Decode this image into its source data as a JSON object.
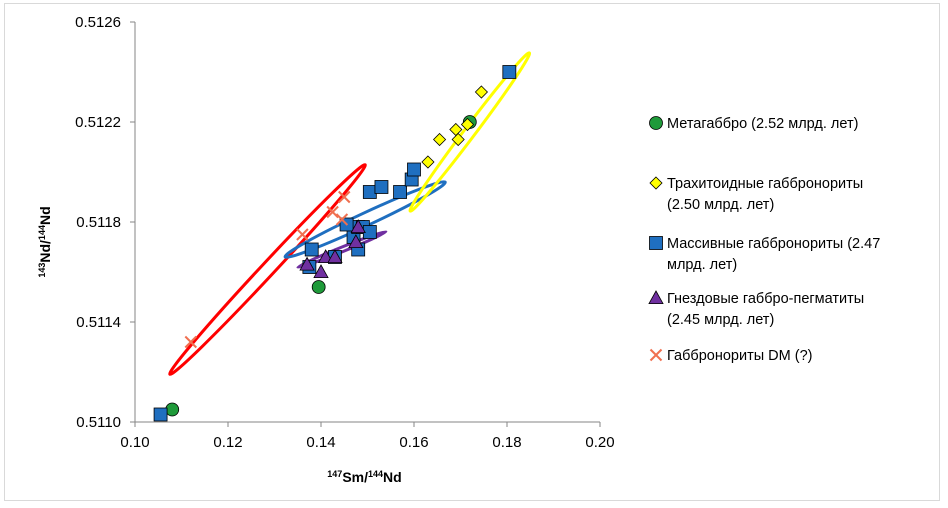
{
  "chart_data": {
    "type": "scatter",
    "title": "",
    "xlabel": {
      "sup1": "147",
      "main1": "Sm/",
      "sup2": "144",
      "main2": "Nd"
    },
    "ylabel": {
      "sup1": "143",
      "main1": "Nd/",
      "sup2": "144",
      "main2": "Nd"
    },
    "xlim": [
      0.1,
      0.2
    ],
    "ylim": [
      0.511,
      0.5126
    ],
    "x_ticks": [
      "0.10",
      "0.12",
      "0.14",
      "0.16",
      "0.18",
      "0.20"
    ],
    "y_ticks": [
      "0.5110",
      "0.5114",
      "0.5118",
      "0.5122",
      "0.5126"
    ],
    "grid": false,
    "legend_position": "right",
    "series": [
      {
        "name_lines": [
          "Метагаббро (2.52 млрд. лет)"
        ],
        "marker": "circle",
        "color": "#1f9a3a",
        "points": [
          [
            0.108,
            0.51105
          ],
          [
            0.1395,
            0.51154
          ],
          [
            0.172,
            0.5122
          ]
        ]
      },
      {
        "name_lines": [
          "Трахитоидные габбронориты",
          "(2.50 млрд. лет)"
        ],
        "marker": "diamond",
        "color": "#ffff00",
        "points": [
          [
            0.163,
            0.51204
          ],
          [
            0.1655,
            0.51213
          ],
          [
            0.169,
            0.51217
          ],
          [
            0.1695,
            0.51213
          ],
          [
            0.1715,
            0.51219
          ],
          [
            0.1745,
            0.51232
          ]
        ]
      },
      {
        "name_lines": [
          "Массивные габбронориты (2.47",
          "млрд. лет)"
        ],
        "marker": "square",
        "color": "#1f6fc0",
        "points": [
          [
            0.1055,
            0.51103
          ],
          [
            0.138,
            0.51169
          ],
          [
            0.1375,
            0.51162
          ],
          [
            0.143,
            0.51166
          ],
          [
            0.147,
            0.51174
          ],
          [
            0.148,
            0.51178
          ],
          [
            0.148,
            0.51169
          ],
          [
            0.149,
            0.51178
          ],
          [
            0.1505,
            0.51176
          ],
          [
            0.1455,
            0.51179
          ],
          [
            0.1505,
            0.51192
          ],
          [
            0.153,
            0.51194
          ],
          [
            0.157,
            0.51192
          ],
          [
            0.1595,
            0.51197
          ],
          [
            0.16,
            0.51201
          ],
          [
            0.1805,
            0.5124
          ]
        ]
      },
      {
        "name_lines": [
          "Гнездовые габбро-пегматиты",
          "(2.45 млрд. лет)"
        ],
        "marker": "triangle",
        "color": "#7030a0",
        "points": [
          [
            0.137,
            0.51163
          ],
          [
            0.14,
            0.5116
          ],
          [
            0.141,
            0.51166
          ],
          [
            0.143,
            0.51166
          ],
          [
            0.1475,
            0.51172
          ],
          [
            0.148,
            0.51178
          ]
        ]
      },
      {
        "name_lines": [
          "Габбронориты DM (?)"
        ],
        "marker": "x",
        "color": "#f07050",
        "points": [
          [
            0.112,
            0.51132
          ],
          [
            0.136,
            0.51175
          ],
          [
            0.1425,
            0.51184
          ],
          [
            0.145,
            0.5119
          ],
          [
            0.1445,
            0.51181
          ]
        ]
      }
    ],
    "ellipses": [
      {
        "color": "#ff0000",
        "cx": 0.1285,
        "cy": 0.51161,
        "rx_axis": 0.0308,
        "ry_axis": 2.65e-05,
        "angle_deg": -47
      },
      {
        "color": "#1f6fc0",
        "cx": 0.1495,
        "cy": 0.51181,
        "rx_axis": 0.019,
        "ry_axis": 2.57e-05,
        "angle_deg": -25
      },
      {
        "color": "#ffff00",
        "cx": 0.172,
        "cy": 0.51216,
        "rx_axis": 0.0213,
        "ry_axis": 2.18e-05,
        "angle_deg": -53
      },
      {
        "color": "#7030a0",
        "cx": 0.1445,
        "cy": 0.51169,
        "rx_axis": 0.0102,
        "ry_axis": 9e-06,
        "angle_deg": -22
      }
    ]
  }
}
